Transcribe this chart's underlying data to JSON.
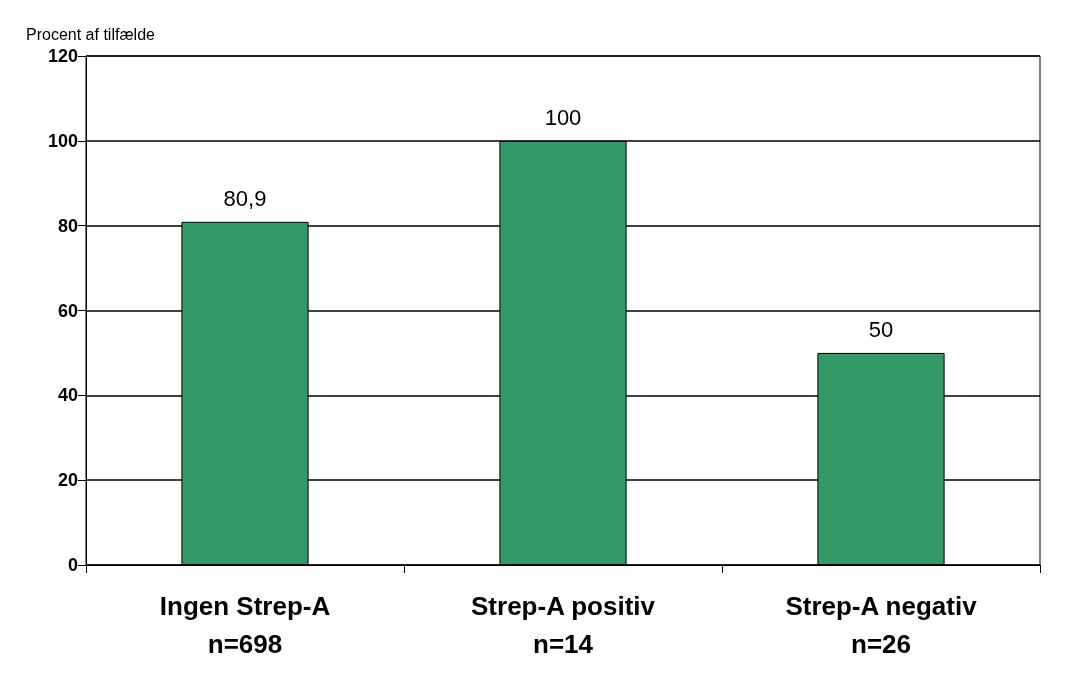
{
  "chart_data": {
    "type": "bar",
    "ylabel": "Procent af tilfælde",
    "categories": [
      "Ingen Strep-A\nn=698",
      "Strep-A positiv\nn=14",
      "Strep-A negativ\nn=26"
    ],
    "values": [
      80.9,
      100,
      50
    ],
    "value_labels": [
      "80,9",
      "100",
      "50"
    ],
    "color": "#339966",
    "ylim": [
      0,
      120
    ],
    "yticks": [
      0,
      20,
      40,
      60,
      80,
      100,
      120
    ],
    "grid": "y"
  }
}
